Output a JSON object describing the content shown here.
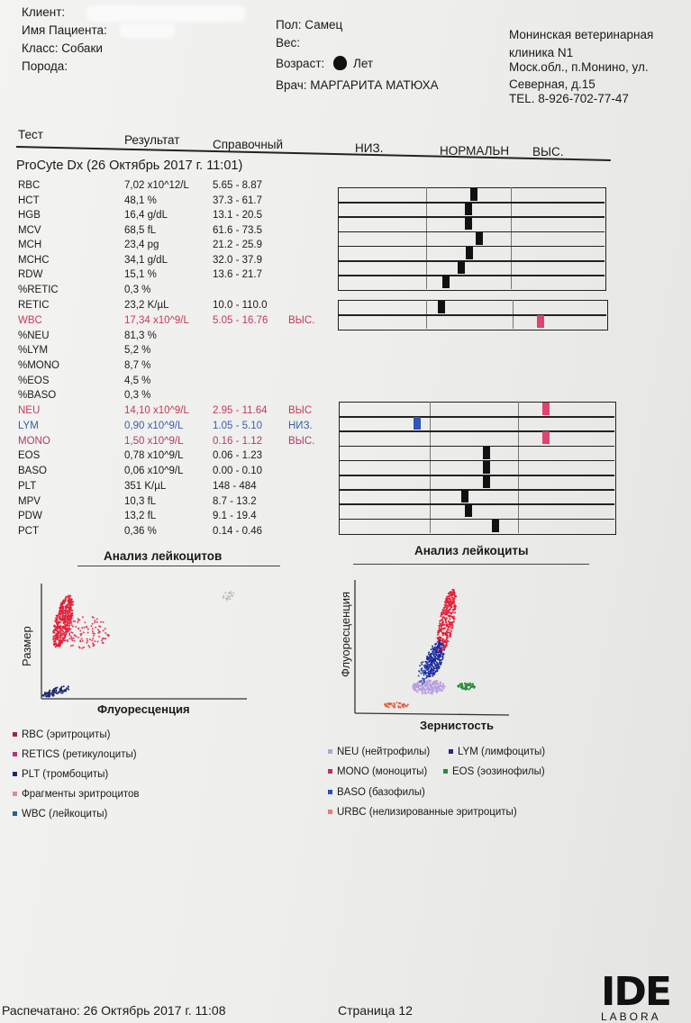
{
  "header": {
    "client_label": "Клиент:",
    "patient_label": "Имя Пациента:",
    "class_label": "Класс: Собаки",
    "breed_label": "Порода:",
    "sex_label": "Пол: Самец",
    "weight_label": "Вес:",
    "age_label": "Возраст:",
    "age_value": "Лет",
    "doctor_label": "Врач: МАРГАРИТА МАТЮХА",
    "clinic": [
      "Монинская ветеринарная",
      "клиника N1",
      "Моск.обл., п.Монино, ул.",
      "Северная, д.15",
      "TEL. 8-926-702-77-47"
    ]
  },
  "columns": {
    "test": "Тест",
    "result": "Результат",
    "reference": "Справочный",
    "low": "НИЗ.",
    "normal": "НОРМАЛЬН",
    "high": "ВЫС."
  },
  "run_title": "ProCyte Dx (26 Октябрь 2017 г. 11:01)",
  "results": [
    {
      "name": "RBC",
      "value": "7,02 x10^12/L",
      "ref": "5.65 - 8.87",
      "flag": "",
      "status": "normal",
      "position": 0.52
    },
    {
      "name": "HCT",
      "value": "48,1 %",
      "ref": "37.3 - 61.7",
      "flag": "",
      "status": "normal",
      "position": 0.46
    },
    {
      "name": "HGB",
      "value": "16,4 g/dL",
      "ref": "13.1 - 20.5",
      "flag": "",
      "status": "normal",
      "position": 0.46
    },
    {
      "name": "MCV",
      "value": "68,5 fL",
      "ref": "61.6 - 73.5",
      "flag": "",
      "status": "normal",
      "position": 0.58
    },
    {
      "name": "MCH",
      "value": "23,4 pg",
      "ref": "21.2 - 25.9",
      "flag": "",
      "status": "normal",
      "position": 0.47
    },
    {
      "name": "MCHC",
      "value": "34,1 g/dL",
      "ref": "32.0 - 37.9",
      "flag": "",
      "status": "normal",
      "position": 0.37
    },
    {
      "name": "RDW",
      "value": "15,1 %",
      "ref": "13.6 - 21.7",
      "flag": "",
      "status": "normal",
      "position": 0.19
    },
    {
      "name": "%RETIC",
      "value": "0,3 %",
      "ref": "",
      "flag": "",
      "status": "none",
      "position": null
    },
    {
      "name": "RETIC",
      "value": "23,2 K/µL",
      "ref": "10.0 - 110.0",
      "flag": "",
      "status": "normal",
      "position": 0.13
    },
    {
      "name": "WBC",
      "value": "17,34 x10^9/L",
      "ref": "5.05 - 16.76",
      "flag": "ВЫС.",
      "status": "high",
      "position": 0.02
    },
    {
      "name": "%NEU",
      "value": "81,3 %",
      "ref": "",
      "flag": "",
      "status": "none",
      "position": null
    },
    {
      "name": "%LYM",
      "value": "5,2 %",
      "ref": "",
      "flag": "",
      "status": "none",
      "position": null
    },
    {
      "name": "%MONO",
      "value": "8,7 %",
      "ref": "",
      "flag": "",
      "status": "none",
      "position": null
    },
    {
      "name": "%EOS",
      "value": "4,5 %",
      "ref": "",
      "flag": "",
      "status": "none",
      "position": null
    },
    {
      "name": "%BASO",
      "value": "0,3 %",
      "ref": "",
      "flag": "",
      "status": "none",
      "position": null
    },
    {
      "name": "NEU",
      "value": "14,10 x10^9/L",
      "ref": "2.95 - 11.64",
      "flag": "ВЫС",
      "status": "high",
      "position": 0.05
    },
    {
      "name": "LYM",
      "value": "0,90 x10^9/L",
      "ref": "1.05 - 5.10",
      "flag": "НИЗ.",
      "status": "low",
      "position": 0.86
    },
    {
      "name": "MONO",
      "value": "1,50 x10^9/L",
      "ref": "0.16 - 1.12",
      "flag": "ВЫС.",
      "status": "high",
      "position": 0.03
    },
    {
      "name": "EOS",
      "value": "0,78 x10^9/L",
      "ref": "0.06 - 1.23",
      "flag": "",
      "status": "normal",
      "position": 0.6
    },
    {
      "name": "BASO",
      "value": "0,06 x10^9/L",
      "ref": "0.00 - 0.10",
      "flag": "",
      "status": "normal",
      "position": 0.6
    },
    {
      "name": "PLT",
      "value": "351 K/µL",
      "ref": "148 - 484",
      "flag": "",
      "status": "normal",
      "position": 0.6
    },
    {
      "name": "MPV",
      "value": "10,3 fL",
      "ref": "8.7 - 13.2",
      "flag": "",
      "status": "normal",
      "position": 0.36
    },
    {
      "name": "PDW",
      "value": "13,2 fL",
      "ref": "9.1 - 19.4",
      "flag": "",
      "status": "normal",
      "position": 0.4
    },
    {
      "name": "PCT",
      "value": "0,36 %",
      "ref": "0.14 - 0.46",
      "flag": "",
      "status": "normal",
      "position": 0.7
    }
  ],
  "scatter_left": {
    "title": "Анализ лейкоцитов",
    "ylabel": "Размер",
    "xlabel": "Флуоресценция",
    "legend": [
      {
        "label": "RBC (эритроциты)",
        "color": "#9e2a3a"
      },
      {
        "label": "RETICS (ретикулоциты)",
        "color": "#b03a7a"
      },
      {
        "label": "PLT (тромбоциты)",
        "color": "#1d2a6e"
      },
      {
        "label": "Фрагменты эритроцитов",
        "color": "#d88ab0"
      },
      {
        "label": "WBC (лейкоциты)",
        "color": "#2a5f8a"
      }
    ]
  },
  "scatter_right": {
    "title": "Анализ лейкоциты",
    "ylabel": "Флуоресценция",
    "xlabel": "Зернистость",
    "legend": [
      {
        "label": "NEU (нейтрофилы)",
        "color": "#a9a9d4"
      },
      {
        "label": "LYM (лимфоциты)",
        "color": "#1d2a8e"
      },
      {
        "label": "MONO (моноциты)",
        "color": "#c0305a"
      },
      {
        "label": "EOS (эозинофилы)",
        "color": "#2a8a3a"
      },
      {
        "label": "BASO (базофилы)",
        "color": "#2a4fb0"
      },
      {
        "label": "URBC (нелизированные эритроциты)",
        "color": "#e87a7a"
      }
    ]
  },
  "footer": {
    "printed": "Распечатано: 26 Октябрь 2017 г. 11:08",
    "page": "Страница 12",
    "logo": "IDE",
    "logo_sub": "LABORA"
  },
  "colors": {
    "high": "#e0436e",
    "low": "#2f56b8",
    "normal": "#111111"
  }
}
